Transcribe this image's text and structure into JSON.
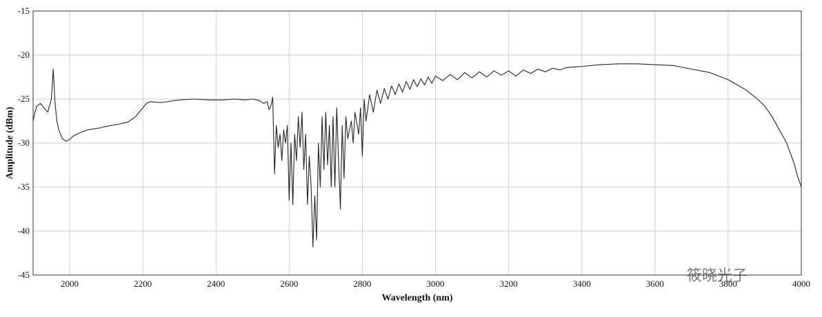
{
  "chart_data": {
    "type": "line",
    "xlabel": "Wavelength (nm)",
    "ylabel": "Amplitude (dBm)",
    "xlim": [
      1900,
      4000
    ],
    "ylim": [
      -45,
      -15
    ],
    "xticks": [
      2000,
      2200,
      2400,
      2600,
      2800,
      3000,
      3200,
      3400,
      3600,
      3800,
      4000
    ],
    "yticks": [
      -45,
      -40,
      -35,
      -30,
      -25,
      -20,
      -15
    ],
    "grid": true,
    "watermark": "筱晓光子",
    "series": [
      {
        "color": "#222222",
        "x": [
          1900,
          1905,
          1910,
          1920,
          1930,
          1940,
          1950,
          1955,
          1960,
          1965,
          1970,
          1980,
          1990,
          2000,
          2010,
          2030,
          2050,
          2080,
          2100,
          2130,
          2160,
          2180,
          2200,
          2210,
          2220,
          2250,
          2300,
          2340,
          2380,
          2420,
          2450,
          2480,
          2500,
          2520,
          2530,
          2540,
          2545,
          2550,
          2555,
          2560,
          2565,
          2570,
          2575,
          2580,
          2585,
          2590,
          2595,
          2600,
          2605,
          2610,
          2615,
          2620,
          2625,
          2630,
          2635,
          2640,
          2645,
          2650,
          2655,
          2660,
          2665,
          2670,
          2675,
          2680,
          2685,
          2690,
          2695,
          2700,
          2705,
          2710,
          2715,
          2720,
          2725,
          2730,
          2735,
          2740,
          2745,
          2750,
          2755,
          2760,
          2770,
          2775,
          2780,
          2790,
          2795,
          2800,
          2805,
          2810,
          2820,
          2830,
          2840,
          2850,
          2860,
          2870,
          2880,
          2890,
          2900,
          2910,
          2920,
          2930,
          2940,
          2950,
          2960,
          2970,
          2980,
          2990,
          3000,
          3020,
          3040,
          3060,
          3080,
          3100,
          3120,
          3140,
          3160,
          3180,
          3200,
          3220,
          3240,
          3260,
          3280,
          3300,
          3320,
          3340,
          3360,
          3400,
          3450,
          3500,
          3550,
          3600,
          3650,
          3700,
          3750,
          3800,
          3850,
          3880,
          3900,
          3920,
          3940,
          3960,
          3980,
          3990,
          4000
        ],
        "values": [
          -27.5,
          -26.5,
          -25.8,
          -25.5,
          -26.0,
          -26.5,
          -25.0,
          -21.6,
          -25.5,
          -27.5,
          -28.5,
          -29.5,
          -29.8,
          -29.6,
          -29.2,
          -28.8,
          -28.5,
          -28.3,
          -28.1,
          -27.9,
          -27.6,
          -27.0,
          -26.0,
          -25.5,
          -25.3,
          -25.4,
          -25.1,
          -25.0,
          -25.1,
          -25.1,
          -25.0,
          -25.1,
          -25.0,
          -25.2,
          -25.5,
          -25.3,
          -26.2,
          -25.8,
          -24.8,
          -33.5,
          -28.0,
          -30.5,
          -29.0,
          -32.0,
          -28.5,
          -30.0,
          -28.0,
          -36.5,
          -30.0,
          -37.0,
          -29.0,
          -32.0,
          -27.0,
          -30.5,
          -26.5,
          -33.0,
          -29.0,
          -37.0,
          -31.5,
          -35.0,
          -41.8,
          -36.0,
          -41.0,
          -30.0,
          -35.0,
          -27.0,
          -33.0,
          -26.5,
          -32.5,
          -28.0,
          -35.0,
          -27.0,
          -35.0,
          -26.0,
          -32.0,
          -37.5,
          -28.0,
          -34.0,
          -27.0,
          -29.5,
          -27.5,
          -30.0,
          -26.5,
          -29.0,
          -26.0,
          -31.5,
          -25.0,
          -27.5,
          -24.5,
          -26.5,
          -24.0,
          -25.5,
          -23.8,
          -25.0,
          -23.5,
          -24.5,
          -23.3,
          -24.2,
          -23.0,
          -23.9,
          -22.8,
          -23.6,
          -22.7,
          -23.4,
          -22.5,
          -23.2,
          -22.4,
          -22.9,
          -22.2,
          -22.8,
          -22.0,
          -22.6,
          -21.9,
          -22.5,
          -21.8,
          -22.3,
          -21.8,
          -22.4,
          -21.7,
          -22.1,
          -21.6,
          -21.9,
          -21.5,
          -21.7,
          -21.4,
          -21.3,
          -21.1,
          -21.0,
          -21.0,
          -21.1,
          -21.2,
          -21.6,
          -22.0,
          -22.8,
          -24.0,
          -25.0,
          -25.8,
          -27.0,
          -28.5,
          -30.0,
          -32.3,
          -33.8,
          -35.0
        ]
      }
    ]
  }
}
